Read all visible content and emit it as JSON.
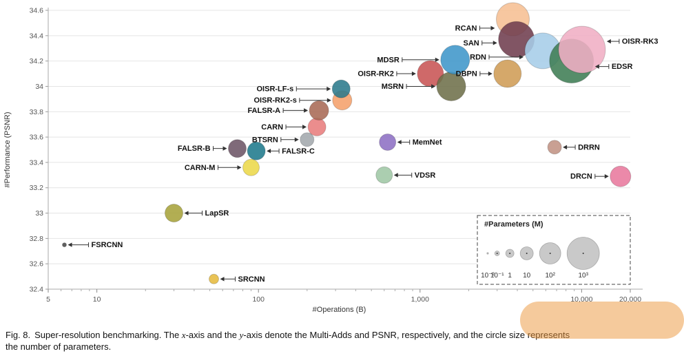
{
  "chart_data": {
    "type": "scatter",
    "title": "",
    "xlabel": "#Operations (B)",
    "ylabel": "#Performance (PSNR)",
    "x_scale": "log",
    "xlim": [
      5,
      20000
    ],
    "ylim": [
      32.4,
      34.6
    ],
    "grid": "horizontal",
    "x_ticks": [
      {
        "v": 5,
        "label": "5"
      },
      {
        "v": 10,
        "label": "10"
      },
      {
        "v": 100,
        "label": "100"
      },
      {
        "v": 1000,
        "label": "1,000"
      },
      {
        "v": 10000,
        "label": "10,000"
      },
      {
        "v": 20000,
        "label": "20,000"
      }
    ],
    "y_tick_labels": [
      "32.4",
      "32.6",
      "32.8",
      "33",
      "33.2",
      "33.4",
      "33.6",
      "33.8",
      "34",
      "34.2",
      "34.4",
      "34.6"
    ],
    "legend": {
      "title": "#Parameters (M)",
      "position": "bottom-right",
      "items": [
        {
          "label": "10⁻²",
          "r": 1.2
        },
        {
          "label": "10⁻¹",
          "r": 3.5
        },
        {
          "label": "1",
          "r": 6
        },
        {
          "label": "10",
          "r": 9.5
        },
        {
          "label": "10²",
          "r": 15.5
        },
        {
          "label": "10³",
          "r": 23.5
        }
      ]
    },
    "points": [
      {
        "label": "FSRCNN",
        "ops_b": 6.3,
        "psnr": 32.75,
        "r": 3,
        "color": "#4a4a4a",
        "side": "right",
        "gap": 30,
        "dy": 0
      },
      {
        "label": "SRCNN",
        "ops_b": 53,
        "psnr": 32.48,
        "r": 7,
        "color": "#e6bb3f",
        "side": "right",
        "gap": 22,
        "dy": 0
      },
      {
        "label": "LapSR",
        "ops_b": 30,
        "psnr": 33.0,
        "r": 13,
        "color": "#a7a33b",
        "side": "right",
        "gap": 26,
        "dy": 0
      },
      {
        "label": "CARN-M",
        "ops_b": 90,
        "psnr": 33.36,
        "r": 12,
        "color": "#ecd84a",
        "side": "left",
        "gap": 34,
        "dy": 0
      },
      {
        "label": "FALSR-B",
        "ops_b": 74,
        "psnr": 33.51,
        "r": 13,
        "color": "#6d5566",
        "side": "left",
        "gap": 20,
        "dy": 0
      },
      {
        "label": "FALSR-C",
        "ops_b": 97,
        "psnr": 33.49,
        "r": 13,
        "color": "#1f7a8c",
        "side": "right",
        "gap": 18,
        "dy": 0
      },
      {
        "label": "BTSRN",
        "ops_b": 200,
        "psnr": 33.58,
        "r": 10,
        "color": "#a3a8ad",
        "side": "left",
        "gap": 26,
        "dy": 0
      },
      {
        "label": "CARN",
        "ops_b": 230,
        "psnr": 33.68,
        "r": 13,
        "color": "#e87d7d",
        "side": "left",
        "gap": 30,
        "dy": 0
      },
      {
        "label": "FALSR-A",
        "ops_b": 237,
        "psnr": 33.81,
        "r": 14,
        "color": "#a86a55",
        "side": "left",
        "gap": 36,
        "dy": 0
      },
      {
        "label": "OISR-RK2-s",
        "ops_b": 330,
        "psnr": 33.89,
        "r": 14,
        "color": "#f5a06b",
        "side": "left",
        "gap": 46,
        "dy": 0
      },
      {
        "label": "OISR-LF-s",
        "ops_b": 325,
        "psnr": 33.98,
        "r": 13,
        "color": "#2b7a8c",
        "side": "left",
        "gap": 50,
        "dy": 0
      },
      {
        "label": "MemNet",
        "ops_b": 630,
        "psnr": 33.56,
        "r": 12,
        "color": "#8d6fc4",
        "side": "right",
        "gap": 18,
        "dy": 0
      },
      {
        "label": "VDSR",
        "ops_b": 600,
        "psnr": 33.3,
        "r": 12,
        "color": "#9fc7a5",
        "side": "right",
        "gap": 26,
        "dy": 0
      },
      {
        "label": "OISR-RK2",
        "ops_b": 1160,
        "psnr": 34.1,
        "r": 19,
        "color": "#c85454",
        "side": "left",
        "gap": 28,
        "dy": 0
      },
      {
        "label": "MSRN",
        "ops_b": 1560,
        "psnr": 34.0,
        "r": 21,
        "color": "#6e6f4a",
        "side": "left",
        "gap": 42,
        "dy": 0
      },
      {
        "label": "MDSR",
        "ops_b": 1650,
        "psnr": 34.21,
        "r": 21,
        "color": "#3f96c9",
        "side": "left",
        "gap": 54,
        "dy": 0
      },
      {
        "label": "DBPN",
        "ops_b": 3480,
        "psnr": 34.1,
        "r": 20,
        "color": "#cf9c55",
        "side": "left",
        "gap": 18,
        "dy": 0
      },
      {
        "label": "RCAN",
        "ops_b": 3750,
        "psnr": 34.53,
        "r": 24,
        "color": "#f6bf93",
        "side": "left",
        "gap": 22,
        "dy": 13
      },
      {
        "label": "SAN",
        "ops_b": 3950,
        "psnr": 34.37,
        "r": 26,
        "color": "#703d4f",
        "side": "left",
        "gap": 22,
        "dy": 5
      },
      {
        "label": "RDN",
        "ops_b": 5750,
        "psnr": 34.28,
        "r": 26,
        "color": "#a6cde8",
        "side": "left",
        "gap": 50,
        "dy": 9
      },
      {
        "label": "EDSR",
        "ops_b": 8670,
        "psnr": 34.2,
        "r": 32,
        "color": "#3f7d54",
        "side": "right",
        "gap": 20,
        "dy": 8
      },
      {
        "label": "OISR-RK3",
        "ops_b": 10050,
        "psnr": 34.29,
        "r": 34,
        "color": "#f0aec4",
        "side": "right",
        "gap": 18,
        "dy": -12
      },
      {
        "label": "DRRN",
        "ops_b": 6800,
        "psnr": 33.52,
        "r": 10,
        "color": "#c29384",
        "side": "right",
        "gap": 18,
        "dy": 0
      },
      {
        "label": "DRCN",
        "ops_b": 17400,
        "psnr": 33.29,
        "r": 15,
        "color": "#e8799d",
        "side": "left",
        "gap": 20,
        "dy": 0
      }
    ]
  },
  "caption": {
    "fig_label": "Fig. 8.",
    "seg1": "Super-resolution benchmarking. The ",
    "var_x": "x",
    "seg2": "-axis and the ",
    "var_y": "y",
    "seg3": "-axis denote the Multi-Adds and PSNR, respectively, ",
    "seg3_highlight": "and the circle size represents",
    "seg4": "the number of parameters."
  }
}
